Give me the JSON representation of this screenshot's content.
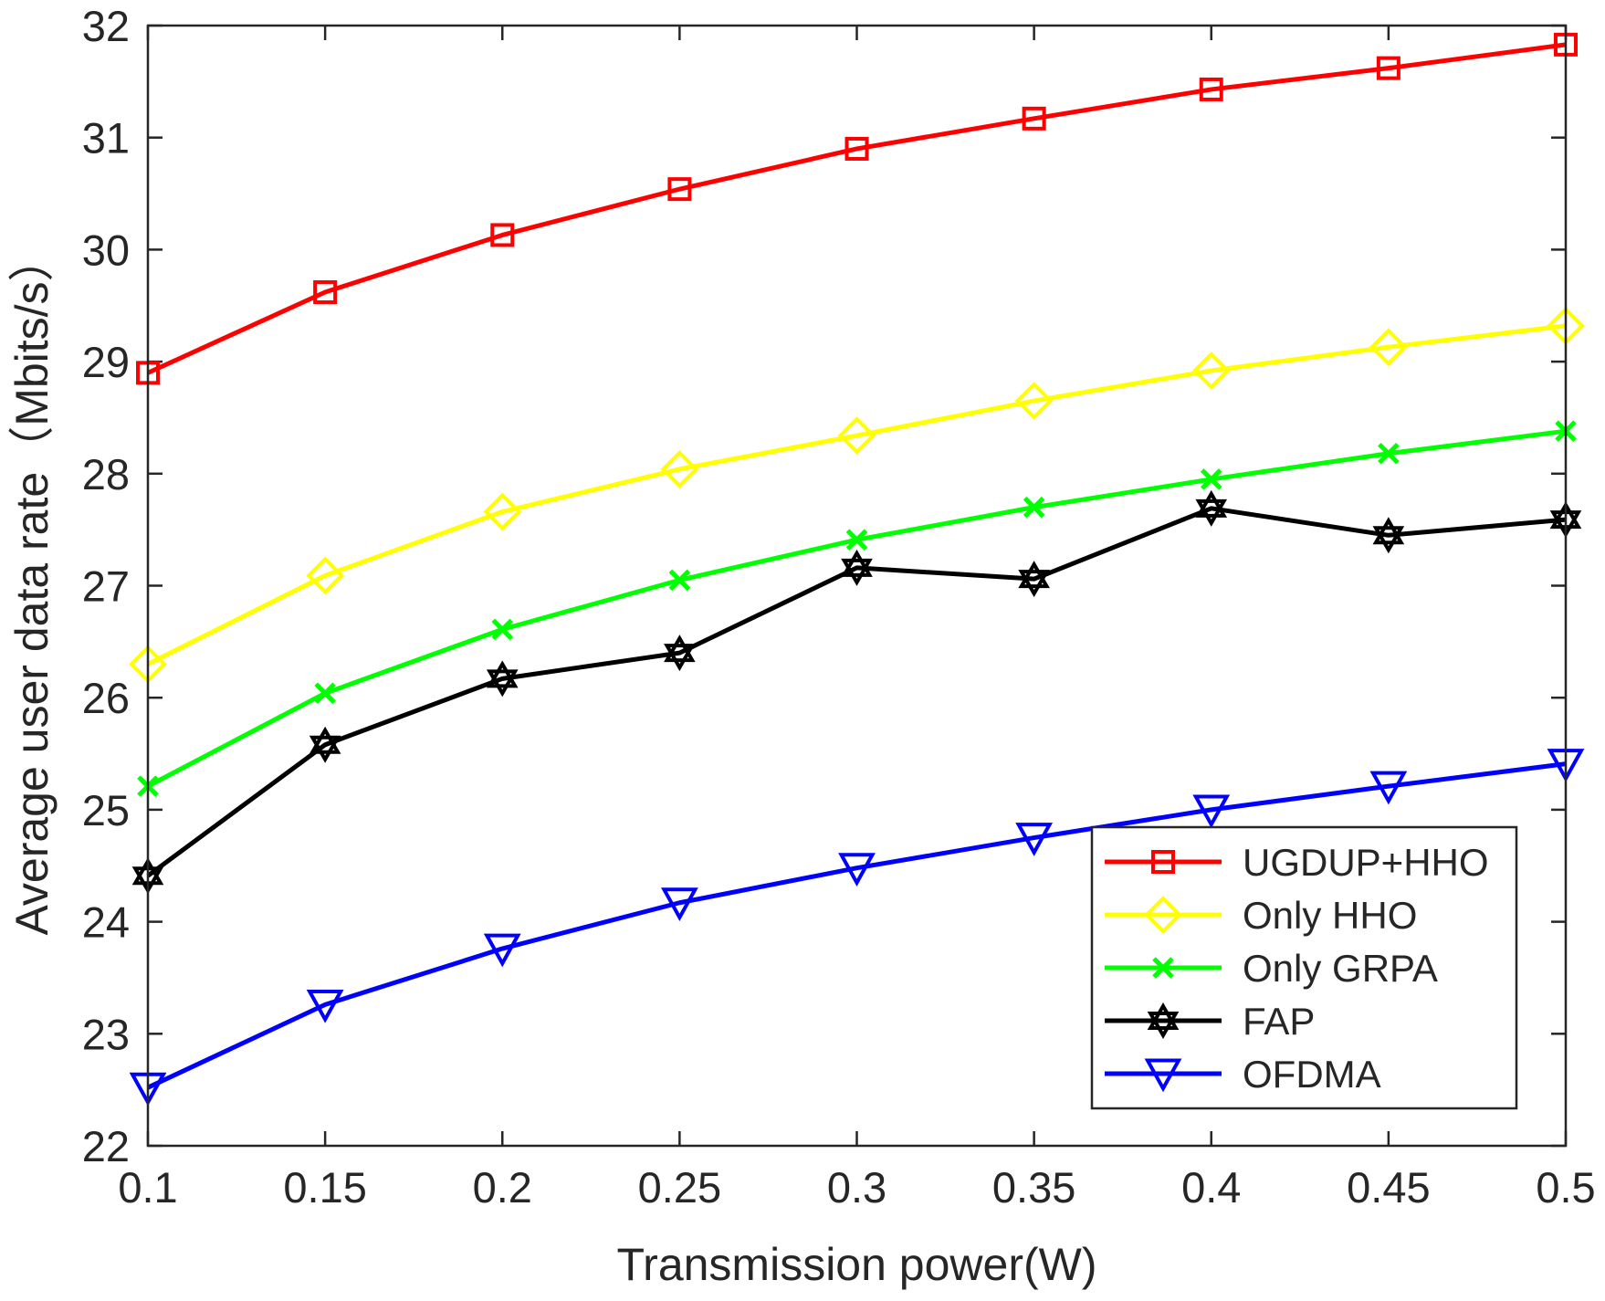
{
  "chart_data": {
    "type": "line",
    "title": "",
    "xlabel": "Transmission power(W)",
    "ylabel": "Average user data rate（Mbits/s）",
    "x": [
      0.1,
      0.15,
      0.2,
      0.25,
      0.3,
      0.35,
      0.4,
      0.45,
      0.5
    ],
    "xlim": [
      0.1,
      0.5
    ],
    "ylim": [
      22,
      32
    ],
    "xticks": [
      0.1,
      0.15,
      0.2,
      0.25,
      0.3,
      0.35,
      0.4,
      0.45,
      0.5
    ],
    "xtick_labels": [
      "0.1",
      "0.15",
      "0.2",
      "0.25",
      "0.3",
      "0.35",
      "0.4",
      "0.45",
      "0.5"
    ],
    "yticks": [
      22,
      23,
      24,
      25,
      26,
      27,
      28,
      29,
      30,
      31,
      32
    ],
    "ytick_labels": [
      "22",
      "23",
      "24",
      "25",
      "26",
      "27",
      "28",
      "29",
      "30",
      "31",
      "32"
    ],
    "grid": false,
    "legend_position": "bottom-right",
    "series": [
      {
        "name": "UGDUP+HHO",
        "color": "#ff0000",
        "marker": "square",
        "values": [
          28.9,
          29.62,
          30.13,
          30.54,
          30.9,
          31.17,
          31.43,
          31.62,
          31.83
        ]
      },
      {
        "name": "Only HHO",
        "color": "#ffff00",
        "marker": "diamond",
        "values": [
          26.3,
          27.09,
          27.66,
          28.04,
          28.34,
          28.65,
          28.92,
          29.13,
          29.32
        ]
      },
      {
        "name": "Only GRPA",
        "color": "#00ff00",
        "marker": "x",
        "values": [
          25.21,
          26.04,
          26.61,
          27.05,
          27.41,
          27.7,
          27.95,
          28.18,
          28.38
        ]
      },
      {
        "name": "FAP",
        "color": "#000000",
        "marker": "hexagram",
        "values": [
          24.41,
          25.58,
          26.17,
          26.4,
          27.16,
          27.06,
          27.69,
          27.45,
          27.59
        ]
      },
      {
        "name": "OFDMA",
        "color": "#0000ff",
        "marker": "triangle-down",
        "values": [
          22.52,
          23.26,
          23.76,
          24.17,
          24.48,
          24.75,
          25.0,
          25.21,
          25.41
        ]
      }
    ]
  }
}
